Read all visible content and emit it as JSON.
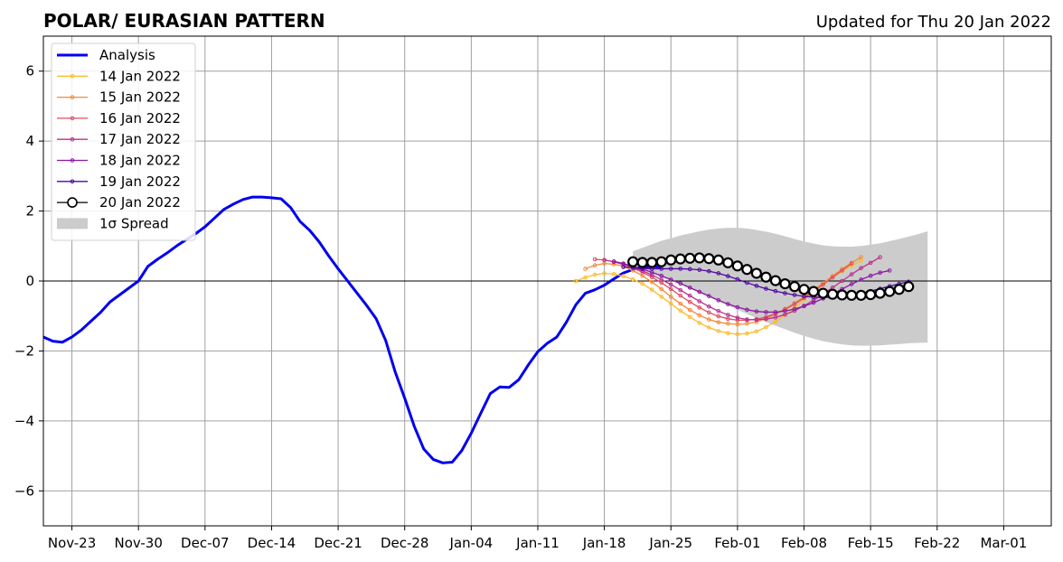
{
  "header": {
    "title": "POLAR/ EURASIAN  PATTERN",
    "updated": "Updated for Thu 20 Jan 2022"
  },
  "chart_data": {
    "type": "line",
    "title": "POLAR/ EURASIAN  PATTERN",
    "subtitle": "Updated for Thu 20 Jan 2022",
    "xlim": [
      "2021-11-20",
      "2022-03-06"
    ],
    "ylim": [
      -7,
      7
    ],
    "grid": true,
    "legend_position": "top-left",
    "x_ticks": [
      "2021-11-23",
      "2021-11-30",
      "2021-12-07",
      "2021-12-14",
      "2021-12-21",
      "2021-12-28",
      "2022-01-04",
      "2022-01-11",
      "2022-01-18",
      "2022-01-25",
      "2022-02-01",
      "2022-02-08",
      "2022-02-15",
      "2022-02-22",
      "2022-03-01"
    ],
    "x_tick_labels": [
      "Nov-23",
      "Nov-30",
      "Dec-07",
      "Dec-14",
      "Dec-21",
      "Dec-28",
      "Jan-04",
      "Jan-11",
      "Jan-18",
      "Jan-25",
      "Feb-01",
      "Feb-08",
      "Feb-15",
      "Feb-22",
      "Mar-01"
    ],
    "y_ticks": [
      -6,
      -4,
      -2,
      0,
      2,
      4,
      6
    ],
    "y_tick_labels": [
      "−6",
      "−4",
      "−2",
      "0",
      "2",
      "4",
      "6"
    ],
    "analysis": {
      "name": "Analysis",
      "color": "#0000ee",
      "start": "2021-11-20",
      "values": [
        -1.6,
        -1.72,
        -1.75,
        -1.6,
        -1.4,
        -1.15,
        -0.9,
        -0.6,
        -0.4,
        -0.2,
        0.0,
        0.42,
        0.62,
        0.8,
        1.0,
        1.18,
        1.35,
        1.55,
        1.8,
        2.05,
        2.2,
        2.33,
        2.4,
        2.4,
        2.38,
        2.35,
        2.1,
        1.7,
        1.45,
        1.12,
        0.72,
        0.35,
        0.0,
        -0.35,
        -0.7,
        -1.08,
        -1.7,
        -2.6,
        -3.35,
        -4.15,
        -4.8,
        -5.1,
        -5.2,
        -5.18,
        -4.85,
        -4.35,
        -3.78,
        -3.22,
        -3.03,
        -3.04,
        -2.82,
        -2.4,
        -2.02,
        -1.78,
        -1.6,
        -1.18,
        -0.68,
        -0.35,
        -0.25,
        -0.12,
        0.06,
        0.23,
        0.33,
        0.4,
        0.42,
        0.4
      ]
    },
    "forecasts": [
      {
        "name": "14 Jan 2022",
        "color": "#fbbb2d",
        "start": "2022-01-15",
        "values": [
          0.0,
          0.1,
          0.18,
          0.22,
          0.2,
          0.14,
          0.05,
          -0.08,
          -0.25,
          -0.45,
          -0.65,
          -0.85,
          -1.03,
          -1.2,
          -1.33,
          -1.43,
          -1.49,
          -1.52,
          -1.5,
          -1.44,
          -1.32,
          -1.16,
          -0.97,
          -0.76,
          -0.54,
          -0.32,
          -0.1,
          0.1,
          0.28,
          0.44,
          0.58
        ]
      },
      {
        "name": "15 Jan 2022",
        "color": "#f38a38",
        "start": "2022-01-16",
        "values": [
          0.35,
          0.45,
          0.5,
          0.48,
          0.42,
          0.3,
          0.15,
          -0.03,
          -0.23,
          -0.45,
          -0.65,
          -0.83,
          -0.98,
          -1.1,
          -1.18,
          -1.22,
          -1.24,
          -1.22,
          -1.17,
          -1.07,
          -0.95,
          -0.8,
          -0.63,
          -0.45,
          -0.26,
          -0.06,
          0.14,
          0.34,
          0.52,
          0.68
        ]
      },
      {
        "name": "16 Jan 2022",
        "color": "#de4d60",
        "start": "2022-01-17",
        "values": [
          0.62,
          0.6,
          0.55,
          0.47,
          0.37,
          0.25,
          0.11,
          -0.05,
          -0.23,
          -0.42,
          -0.6,
          -0.76,
          -0.9,
          -1.01,
          -1.08,
          -1.12,
          -1.12,
          -1.09,
          -1.03,
          -0.93,
          -0.81,
          -0.66,
          -0.49,
          -0.3,
          -0.1,
          0.1,
          0.3,
          0.5
        ]
      },
      {
        "name": "17 Jan 2022",
        "color": "#b92f8d",
        "start": "2022-01-18",
        "values": [
          0.6,
          0.55,
          0.48,
          0.39,
          0.29,
          0.17,
          0.04,
          -0.1,
          -0.26,
          -0.42,
          -0.58,
          -0.73,
          -0.86,
          -0.97,
          -1.05,
          -1.1,
          -1.11,
          -1.09,
          -1.04,
          -0.96,
          -0.85,
          -0.71,
          -0.55,
          -0.38,
          -0.19,
          0.0,
          0.19,
          0.37,
          0.52,
          0.68
        ]
      },
      {
        "name": "18 Jan 2022",
        "color": "#8a16a4",
        "start": "2022-01-19",
        "values": [
          0.56,
          0.5,
          0.42,
          0.34,
          0.25,
          0.15,
          0.04,
          -0.07,
          -0.19,
          -0.31,
          -0.43,
          -0.55,
          -0.66,
          -0.75,
          -0.82,
          -0.87,
          -0.89,
          -0.89,
          -0.86,
          -0.8,
          -0.72,
          -0.62,
          -0.5,
          -0.37,
          -0.23,
          -0.09,
          0.04,
          0.15,
          0.24,
          0.3
        ]
      },
      {
        "name": "19 Jan 2022",
        "color": "#4e07a0",
        "start": "2022-01-20",
        "values": [
          0.4,
          0.38,
          0.36,
          0.35,
          0.35,
          0.35,
          0.35,
          0.34,
          0.32,
          0.28,
          0.22,
          0.14,
          0.05,
          -0.05,
          -0.14,
          -0.22,
          -0.29,
          -0.35,
          -0.4,
          -0.44,
          -0.46,
          -0.47,
          -0.46,
          -0.44,
          -0.4,
          -0.35,
          -0.29,
          -0.22,
          -0.15,
          -0.08,
          -0.02
        ]
      },
      {
        "name": "20 Jan 2022",
        "color": "#000000",
        "start": "2022-01-21",
        "values": [
          0.55,
          0.53,
          0.53,
          0.55,
          0.6,
          0.63,
          0.65,
          0.66,
          0.64,
          0.6,
          0.52,
          0.43,
          0.33,
          0.22,
          0.11,
          0.01,
          -0.08,
          -0.16,
          -0.24,
          -0.3,
          -0.35,
          -0.38,
          -0.4,
          -0.41,
          -0.41,
          -0.39,
          -0.35,
          -0.3,
          -0.24,
          -0.16
        ]
      }
    ],
    "spread": {
      "name": "1σ Spread",
      "color": "#cccccc",
      "start": "2022-01-21",
      "upper": [
        0.85,
        0.95,
        1.05,
        1.15,
        1.22,
        1.3,
        1.36,
        1.42,
        1.47,
        1.5,
        1.52,
        1.52,
        1.5,
        1.46,
        1.41,
        1.35,
        1.28,
        1.2,
        1.13,
        1.07,
        1.02,
        0.99,
        0.98,
        0.98,
        1.0,
        1.04,
        1.08,
        1.14,
        1.2,
        1.27,
        1.34,
        1.42
      ],
      "lower": [
        0.35,
        0.28,
        0.2,
        0.1,
        0.0,
        -0.1,
        -0.22,
        -0.34,
        -0.46,
        -0.58,
        -0.7,
        -0.82,
        -0.94,
        -1.06,
        -1.17,
        -1.28,
        -1.38,
        -1.48,
        -1.57,
        -1.65,
        -1.72,
        -1.77,
        -1.81,
        -1.84,
        -1.85,
        -1.85,
        -1.84,
        -1.82,
        -1.8,
        -1.78,
        -1.77,
        -1.76
      ]
    },
    "legend": [
      {
        "label": "Analysis",
        "kind": "analysis",
        "color": "#0000ee"
      },
      {
        "label": "14 Jan 2022",
        "kind": "forecast",
        "color": "#fbbb2d"
      },
      {
        "label": "15 Jan 2022",
        "kind": "forecast",
        "color": "#f38a38"
      },
      {
        "label": "16 Jan 2022",
        "kind": "forecast",
        "color": "#de4d60"
      },
      {
        "label": "17 Jan 2022",
        "kind": "forecast",
        "color": "#b92f8d"
      },
      {
        "label": "18 Jan 2022",
        "kind": "forecast",
        "color": "#8a16a4"
      },
      {
        "label": "19 Jan 2022",
        "kind": "forecast",
        "color": "#4e07a0"
      },
      {
        "label": "20 Jan 2022",
        "kind": "current",
        "color": "#000000"
      },
      {
        "label": "1σ Spread",
        "kind": "spread",
        "color": "#cccccc"
      }
    ]
  }
}
